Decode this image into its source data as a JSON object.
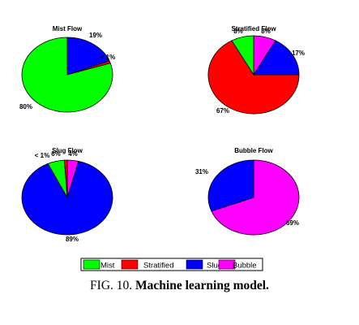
{
  "colors": {
    "Mist": "#00ff00",
    "Stratified": "#ff0000",
    "Slug": "#0000ff",
    "Bubble": "#ff00ff"
  },
  "chart_data": [
    {
      "type": "pie",
      "title": "Mist Flow",
      "slices": [
        {
          "category": "Slug",
          "value": 19,
          "label": "19%"
        },
        {
          "category": "Stratified",
          "value": 1,
          "label": "< 1%"
        },
        {
          "category": "Mist",
          "value": 80,
          "label": "80%"
        }
      ]
    },
    {
      "type": "pie",
      "title": "Stratified Flow",
      "slices": [
        {
          "category": "Bubble",
          "value": 8,
          "label": "8%"
        },
        {
          "category": "Slug",
          "value": 17,
          "label": "17%"
        },
        {
          "category": "Stratified",
          "value": 67,
          "label": "67%"
        },
        {
          "category": "Mist",
          "value": 8,
          "label": "8%"
        }
      ]
    },
    {
      "type": "pie",
      "title": "Slug Flow",
      "slices": [
        {
          "category": "Bubble",
          "value": 4,
          "label": "4%"
        },
        {
          "category": "Slug",
          "value": 89,
          "label": "89%"
        },
        {
          "category": "Mist",
          "value": 6,
          "label": "6%"
        },
        {
          "category": "Stratified",
          "value": 1,
          "label": "< 1%"
        }
      ]
    },
    {
      "type": "pie",
      "title": "Bubble Flow",
      "slices": [
        {
          "category": "Bubble",
          "value": 69,
          "label": "69%"
        },
        {
          "category": "Slug",
          "value": 31,
          "label": "31%"
        }
      ]
    }
  ],
  "legend": [
    "Mist",
    "Stratified",
    "Slug",
    "Bubble"
  ],
  "caption": {
    "prefix": "FIG. 10.",
    "title": "Machine learning model."
  }
}
